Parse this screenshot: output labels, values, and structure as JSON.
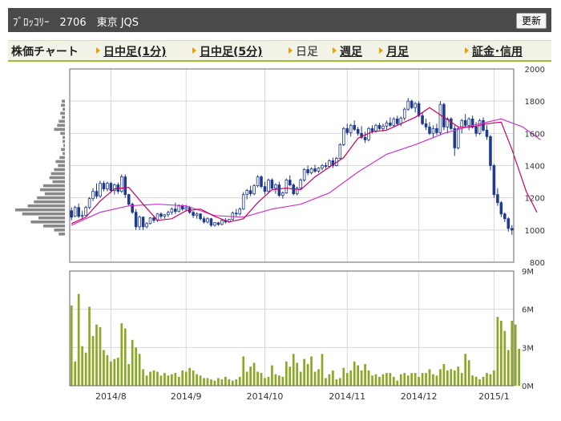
{
  "header": {
    "title": "ﾌﾞﾛｯｺﾘｰ　2706　東京 JQS",
    "refresh_label": "更新"
  },
  "tabs": [
    {
      "label": "株価チャート",
      "type": "static"
    },
    {
      "label": "日中足(1分)",
      "type": "link"
    },
    {
      "label": "日中足(5分)",
      "type": "link"
    },
    {
      "label": "日足",
      "type": "current"
    },
    {
      "label": "週足",
      "type": "link"
    },
    {
      "label": "月足",
      "type": "link"
    },
    {
      "label": "証金･信用",
      "type": "link"
    }
  ],
  "chart_data": {
    "type": "candlestick",
    "price_axis": {
      "min": 800,
      "max": 2000,
      "ticks": [
        800,
        1000,
        1200,
        1400,
        1600,
        1800,
        2000
      ]
    },
    "volume_axis": {
      "min": 0,
      "max": 9000000,
      "ticks": [
        0,
        3000000,
        6000000,
        9000000
      ],
      "tick_labels": [
        "0M",
        "3M",
        "6M",
        "9M"
      ]
    },
    "x_tick_labels": [
      {
        "label": "2014/8",
        "index": 11
      },
      {
        "label": "2014/9",
        "index": 32
      },
      {
        "label": "2014/10",
        "index": 54
      },
      {
        "label": "2014/11",
        "index": 77
      },
      {
        "label": "2014/12",
        "index": 97
      },
      {
        "label": "2015/1",
        "index": 118
      }
    ],
    "colors": {
      "candle": "#1f3a8a",
      "ma_short": "#cc0066",
      "ma_long": "#cc33cc",
      "volume": "#8aa823",
      "price_profile": "#888888"
    },
    "price_profile": [
      {
        "price": 1800,
        "volume": 4
      },
      {
        "price": 1775,
        "volume": 5
      },
      {
        "price": 1750,
        "volume": 3
      },
      {
        "price": 1725,
        "volume": 6
      },
      {
        "price": 1700,
        "volume": 4
      },
      {
        "price": 1675,
        "volume": 8
      },
      {
        "price": 1650,
        "volume": 10
      },
      {
        "price": 1625,
        "volume": 14
      },
      {
        "price": 1600,
        "volume": 6
      },
      {
        "price": 1575,
        "volume": 3
      },
      {
        "price": 1550,
        "volume": 3
      },
      {
        "price": 1525,
        "volume": 2
      },
      {
        "price": 1500,
        "volume": 5
      },
      {
        "price": 1475,
        "volume": 3
      },
      {
        "price": 1450,
        "volume": 7
      },
      {
        "price": 1425,
        "volume": 12
      },
      {
        "price": 1400,
        "volume": 9
      },
      {
        "price": 1375,
        "volume": 14
      },
      {
        "price": 1350,
        "volume": 18
      },
      {
        "price": 1325,
        "volume": 20
      },
      {
        "price": 1300,
        "volume": 16
      },
      {
        "price": 1275,
        "volume": 28
      },
      {
        "price": 1250,
        "volume": 32
      },
      {
        "price": 1225,
        "volume": 26
      },
      {
        "price": 1200,
        "volume": 36
      },
      {
        "price": 1175,
        "volume": 40
      },
      {
        "price": 1150,
        "volume": 48
      },
      {
        "price": 1125,
        "volume": 64
      },
      {
        "price": 1100,
        "volume": 55
      },
      {
        "price": 1075,
        "volume": 34
      },
      {
        "price": 1050,
        "volume": 44
      },
      {
        "price": 1025,
        "volume": 28
      },
      {
        "price": 1000,
        "volume": 14
      },
      {
        "price": 975,
        "volume": 8
      }
    ],
    "candles": [
      [
        1120,
        1140,
        1060,
        1080
      ],
      [
        1085,
        1150,
        1080,
        1140
      ],
      [
        1140,
        1165,
        1075,
        1085
      ],
      [
        1085,
        1120,
        1065,
        1090
      ],
      [
        1090,
        1150,
        1085,
        1140
      ],
      [
        1140,
        1205,
        1130,
        1195
      ],
      [
        1195,
        1260,
        1180,
        1240
      ],
      [
        1240,
        1290,
        1195,
        1210
      ],
      [
        1210,
        1305,
        1200,
        1290
      ],
      [
        1290,
        1305,
        1240,
        1255
      ],
      [
        1255,
        1300,
        1240,
        1290
      ],
      [
        1290,
        1300,
        1230,
        1245
      ],
      [
        1245,
        1290,
        1220,
        1280
      ],
      [
        1280,
        1295,
        1225,
        1240
      ],
      [
        1240,
        1345,
        1230,
        1330
      ],
      [
        1330,
        1345,
        1200,
        1220
      ],
      [
        1220,
        1225,
        1150,
        1160
      ],
      [
        1160,
        1170,
        1100,
        1110
      ],
      [
        1110,
        1130,
        1000,
        1020
      ],
      [
        1020,
        1090,
        1000,
        1080
      ],
      [
        1080,
        1085,
        1000,
        1020
      ],
      [
        1020,
        1050,
        1010,
        1040
      ],
      [
        1040,
        1080,
        1035,
        1075
      ],
      [
        1075,
        1090,
        1045,
        1060
      ],
      [
        1060,
        1105,
        1050,
        1100
      ],
      [
        1100,
        1110,
        1070,
        1085
      ],
      [
        1085,
        1100,
        1070,
        1095
      ],
      [
        1095,
        1120,
        1080,
        1110
      ],
      [
        1110,
        1140,
        1095,
        1130
      ],
      [
        1130,
        1170,
        1100,
        1115
      ],
      [
        1115,
        1160,
        1110,
        1150
      ],
      [
        1150,
        1160,
        1120,
        1130
      ],
      [
        1130,
        1155,
        1115,
        1140
      ],
      [
        1140,
        1150,
        1100,
        1110
      ],
      [
        1110,
        1120,
        1075,
        1090
      ],
      [
        1090,
        1110,
        1070,
        1100
      ],
      [
        1100,
        1105,
        1060,
        1070
      ],
      [
        1070,
        1085,
        1040,
        1050
      ],
      [
        1050,
        1080,
        1040,
        1070
      ],
      [
        1070,
        1075,
        1020,
        1030
      ],
      [
        1030,
        1050,
        1020,
        1045
      ],
      [
        1045,
        1050,
        1025,
        1035
      ],
      [
        1035,
        1070,
        1030,
        1060
      ],
      [
        1060,
        1075,
        1040,
        1050
      ],
      [
        1050,
        1070,
        1045,
        1065
      ],
      [
        1065,
        1115,
        1060,
        1105
      ],
      [
        1105,
        1130,
        1085,
        1100
      ],
      [
        1100,
        1140,
        1090,
        1130
      ],
      [
        1130,
        1235,
        1125,
        1220
      ],
      [
        1220,
        1255,
        1190,
        1245
      ],
      [
        1245,
        1275,
        1210,
        1225
      ],
      [
        1225,
        1285,
        1215,
        1275
      ],
      [
        1275,
        1340,
        1265,
        1330
      ],
      [
        1330,
        1340,
        1260,
        1270
      ],
      [
        1270,
        1300,
        1220,
        1240
      ],
      [
        1240,
        1320,
        1230,
        1310
      ],
      [
        1310,
        1320,
        1250,
        1260
      ],
      [
        1260,
        1290,
        1225,
        1280
      ],
      [
        1280,
        1300,
        1205,
        1215
      ],
      [
        1215,
        1240,
        1195,
        1230
      ],
      [
        1230,
        1320,
        1225,
        1310
      ],
      [
        1310,
        1340,
        1270,
        1280
      ],
      [
        1280,
        1290,
        1215,
        1225
      ],
      [
        1225,
        1270,
        1215,
        1260
      ],
      [
        1260,
        1320,
        1250,
        1310
      ],
      [
        1310,
        1385,
        1300,
        1375
      ],
      [
        1375,
        1400,
        1340,
        1355
      ],
      [
        1355,
        1390,
        1345,
        1380
      ],
      [
        1380,
        1405,
        1355,
        1365
      ],
      [
        1365,
        1390,
        1355,
        1385
      ],
      [
        1385,
        1410,
        1370,
        1400
      ],
      [
        1400,
        1420,
        1380,
        1395
      ],
      [
        1395,
        1440,
        1385,
        1430
      ],
      [
        1430,
        1450,
        1385,
        1400
      ],
      [
        1400,
        1455,
        1395,
        1445
      ],
      [
        1445,
        1540,
        1440,
        1530
      ],
      [
        1530,
        1640,
        1520,
        1630
      ],
      [
        1630,
        1660,
        1590,
        1605
      ],
      [
        1605,
        1660,
        1580,
        1650
      ],
      [
        1650,
        1680,
        1615,
        1625
      ],
      [
        1625,
        1640,
        1585,
        1600
      ],
      [
        1600,
        1645,
        1565,
        1575
      ],
      [
        1575,
        1610,
        1540,
        1560
      ],
      [
        1560,
        1640,
        1550,
        1630
      ],
      [
        1630,
        1650,
        1600,
        1615
      ],
      [
        1615,
        1660,
        1605,
        1650
      ],
      [
        1650,
        1665,
        1620,
        1630
      ],
      [
        1630,
        1660,
        1610,
        1645
      ],
      [
        1645,
        1680,
        1625,
        1665
      ],
      [
        1665,
        1700,
        1640,
        1650
      ],
      [
        1650,
        1700,
        1640,
        1690
      ],
      [
        1690,
        1710,
        1650,
        1660
      ],
      [
        1660,
        1705,
        1645,
        1695
      ],
      [
        1695,
        1760,
        1680,
        1750
      ],
      [
        1750,
        1820,
        1740,
        1800
      ],
      [
        1800,
        1810,
        1750,
        1760
      ],
      [
        1760,
        1795,
        1730,
        1785
      ],
      [
        1785,
        1800,
        1700,
        1710
      ],
      [
        1710,
        1730,
        1650,
        1660
      ],
      [
        1660,
        1690,
        1620,
        1640
      ],
      [
        1640,
        1670,
        1590,
        1600
      ],
      [
        1600,
        1650,
        1570,
        1630
      ],
      [
        1630,
        1660,
        1590,
        1605
      ],
      [
        1605,
        1800,
        1590,
        1780
      ],
      [
        1780,
        1790,
        1620,
        1640
      ],
      [
        1640,
        1700,
        1600,
        1690
      ],
      [
        1690,
        1700,
        1620,
        1630
      ],
      [
        1630,
        1650,
        1460,
        1510
      ],
      [
        1510,
        1640,
        1500,
        1630
      ],
      [
        1630,
        1690,
        1600,
        1680
      ],
      [
        1680,
        1720,
        1640,
        1650
      ],
      [
        1650,
        1700,
        1620,
        1690
      ],
      [
        1690,
        1710,
        1630,
        1640
      ],
      [
        1640,
        1670,
        1580,
        1600
      ],
      [
        1600,
        1690,
        1590,
        1680
      ],
      [
        1680,
        1700,
        1610,
        1620
      ],
      [
        1620,
        1650,
        1560,
        1580
      ],
      [
        1580,
        1590,
        1370,
        1400
      ],
      [
        1400,
        1410,
        1200,
        1220
      ],
      [
        1220,
        1260,
        1150,
        1170
      ],
      [
        1170,
        1180,
        1080,
        1100
      ],
      [
        1100,
        1110,
        1050,
        1070
      ],
      [
        1070,
        1080,
        990,
        1010
      ],
      [
        1010,
        1030,
        970,
        1000
      ]
    ],
    "volumes": [
      6300000,
      1900000,
      7200000,
      3100000,
      2600000,
      6200000,
      3900000,
      4800000,
      4600000,
      2800000,
      2400000,
      1900000,
      2100000,
      2200000,
      4900000,
      4500000,
      1700000,
      3600000,
      3000000,
      2500000,
      1300000,
      800000,
      1100000,
      1200000,
      1100000,
      800000,
      1000000,
      800000,
      900000,
      1000000,
      700000,
      1200000,
      1100000,
      1400000,
      1200000,
      900000,
      800000,
      600000,
      600000,
      500000,
      400000,
      600000,
      500000,
      700000,
      500000,
      400000,
      500000,
      700000,
      2300000,
      1100000,
      1500000,
      1800000,
      1100000,
      1000000,
      600000,
      700000,
      1600000,
      900000,
      800000,
      700000,
      1900000,
      1500000,
      2500000,
      1800000,
      1100000,
      2100000,
      1700000,
      2300000,
      1100000,
      1300000,
      2500000,
      600000,
      900000,
      1200000,
      500000,
      600000,
      1400000,
      1000000,
      1200000,
      1900000,
      1600000,
      1200000,
      1700000,
      1200000,
      800000,
      900000,
      700000,
      900000,
      1000000,
      1000000,
      700000,
      400000,
      900000,
      1000000,
      800000,
      1000000,
      1000000,
      700000,
      1000000,
      1000000,
      1300000,
      900000,
      800000,
      1300000,
      1700000,
      1200000,
      1300000,
      1200000,
      1500000,
      1000000,
      2500000,
      2000000,
      800000,
      700000,
      500000,
      700000,
      1000000,
      900000,
      1200000,
      5400000,
      5100000,
      4300000,
      2800000,
      5100000,
      4800000,
      2900000
    ],
    "ma_short": [
      [
        0,
        1040
      ],
      [
        4,
        1080
      ],
      [
        8,
        1180
      ],
      [
        12,
        1255
      ],
      [
        16,
        1265
      ],
      [
        20,
        1160
      ],
      [
        24,
        1060
      ],
      [
        28,
        1070
      ],
      [
        32,
        1120
      ],
      [
        36,
        1130
      ],
      [
        40,
        1085
      ],
      [
        44,
        1050
      ],
      [
        48,
        1070
      ],
      [
        52,
        1170
      ],
      [
        56,
        1250
      ],
      [
        60,
        1260
      ],
      [
        64,
        1250
      ],
      [
        68,
        1330
      ],
      [
        72,
        1390
      ],
      [
        76,
        1450
      ],
      [
        80,
        1570
      ],
      [
        84,
        1610
      ],
      [
        88,
        1620
      ],
      [
        92,
        1660
      ],
      [
        96,
        1700
      ],
      [
        100,
        1760
      ],
      [
        104,
        1700
      ],
      [
        108,
        1640
      ],
      [
        112,
        1640
      ],
      [
        116,
        1660
      ],
      [
        120,
        1670
      ],
      [
        123,
        1500
      ],
      [
        127,
        1240
      ],
      [
        130,
        1110
      ]
    ],
    "ma_long": [
      [
        0,
        1030
      ],
      [
        8,
        1110
      ],
      [
        16,
        1150
      ],
      [
        24,
        1160
      ],
      [
        32,
        1150
      ],
      [
        40,
        1090
      ],
      [
        48,
        1080
      ],
      [
        56,
        1130
      ],
      [
        64,
        1160
      ],
      [
        72,
        1230
      ],
      [
        80,
        1360
      ],
      [
        88,
        1470
      ],
      [
        96,
        1530
      ],
      [
        104,
        1600
      ],
      [
        112,
        1650
      ],
      [
        120,
        1690
      ],
      [
        126,
        1640
      ],
      [
        131,
        1560
      ]
    ]
  }
}
